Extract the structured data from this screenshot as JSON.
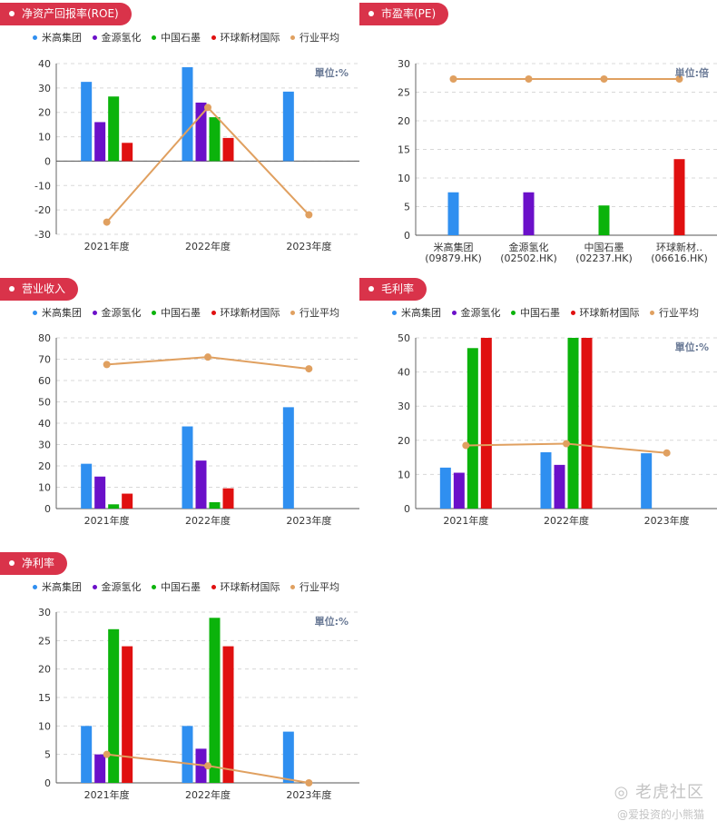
{
  "legend": [
    {
      "label": "米高集团",
      "color": "#2f8ff0"
    },
    {
      "label": "金源氢化",
      "color": "#6b10c9"
    },
    {
      "label": "中国石墨",
      "color": "#0bb30b"
    },
    {
      "label": "环球新材国际",
      "color": "#e01010"
    },
    {
      "label": "行业平均",
      "color": "#e0a060"
    }
  ],
  "watermark": {
    "line1": "老虎社区",
    "line2": "@爱投资的小熊猫"
  },
  "chart_data": [
    {
      "id": "roe",
      "title": "净资产回报率(ROE)",
      "type": "bar",
      "unit": "單位:%",
      "categories": [
        "2021年度",
        "2022年度",
        "2023年度"
      ],
      "ylim": [
        -30,
        40
      ],
      "yticks": [
        -30,
        -20,
        -10,
        0,
        10,
        20,
        30,
        40
      ],
      "series": [
        {
          "name": "米高集团",
          "values": [
            32.5,
            38.5,
            28.5
          ]
        },
        {
          "name": "金源氢化",
          "values": [
            16,
            24,
            null
          ]
        },
        {
          "name": "中国石墨",
          "values": [
            26.5,
            18,
            null
          ]
        },
        {
          "name": "环球新材国际",
          "values": [
            7.5,
            9.5,
            null
          ]
        }
      ],
      "line": {
        "name": "行业平均",
        "values": [
          -25,
          22,
          -22
        ]
      }
    },
    {
      "id": "pe",
      "title": "市盈率(PE)",
      "type": "bar",
      "unit": "単位:倍",
      "categories": [
        "米高集团\n(09879.HK)",
        "金源氢化\n(02502.HK)",
        "中国石墨\n(02237.HK)",
        "环球新材..\n(06616.HK)"
      ],
      "ylim": [
        0,
        30
      ],
      "yticks": [
        0,
        5,
        10,
        15,
        20,
        25,
        30
      ],
      "bars": [
        7.5,
        7.5,
        5.2,
        13.3
      ],
      "line": {
        "name": "行业平均",
        "values": [
          27.3,
          27.3,
          27.3,
          27.3
        ]
      }
    },
    {
      "id": "revenue",
      "title": "营业收入",
      "type": "bar",
      "unit": "",
      "categories": [
        "2021年度",
        "2022年度",
        "2023年度"
      ],
      "ylim": [
        0,
        80
      ],
      "yticks": [
        0,
        10,
        20,
        30,
        40,
        50,
        60,
        70,
        80
      ],
      "series": [
        {
          "name": "米高集团",
          "values": [
            21,
            38.5,
            47.5
          ]
        },
        {
          "name": "金源氢化",
          "values": [
            15,
            22.5,
            null
          ]
        },
        {
          "name": "中国石墨",
          "values": [
            2,
            3,
            null
          ]
        },
        {
          "name": "环球新材国际",
          "values": [
            7,
            9.5,
            null
          ]
        }
      ],
      "line": {
        "name": "行业平均",
        "values": [
          67.5,
          71,
          65.5
        ]
      }
    },
    {
      "id": "gross",
      "title": "毛利率",
      "type": "bar",
      "unit": "單位:%",
      "categories": [
        "2021年度",
        "2022年度",
        "2023年度"
      ],
      "ylim": [
        0,
        50
      ],
      "yticks": [
        0,
        10,
        20,
        30,
        40,
        50
      ],
      "series": [
        {
          "name": "米高集团",
          "values": [
            12,
            16.5,
            16.2
          ]
        },
        {
          "name": "金源氢化",
          "values": [
            10.5,
            12.8,
            null
          ]
        },
        {
          "name": "中国石墨",
          "values": [
            47,
            50,
            null
          ]
        },
        {
          "name": "环球新材国际",
          "values": [
            50,
            50,
            null
          ]
        }
      ],
      "line": {
        "name": "行业平均",
        "values": [
          18.5,
          19,
          16.3
        ]
      }
    },
    {
      "id": "net",
      "title": "净利率",
      "type": "bar",
      "unit": "單位:%",
      "categories": [
        "2021年度",
        "2022年度",
        "2023年度"
      ],
      "ylim": [
        0,
        30
      ],
      "yticks": [
        0,
        5,
        10,
        15,
        20,
        25,
        30
      ],
      "series": [
        {
          "name": "米高集团",
          "values": [
            10,
            10,
            9
          ]
        },
        {
          "name": "金源氢化",
          "values": [
            5,
            6,
            null
          ]
        },
        {
          "name": "中国石墨",
          "values": [
            27,
            29,
            null
          ]
        },
        {
          "name": "环球新材国际",
          "values": [
            24,
            24,
            null
          ]
        }
      ],
      "line": {
        "name": "行业平均",
        "values": [
          5,
          3,
          0
        ]
      }
    }
  ]
}
